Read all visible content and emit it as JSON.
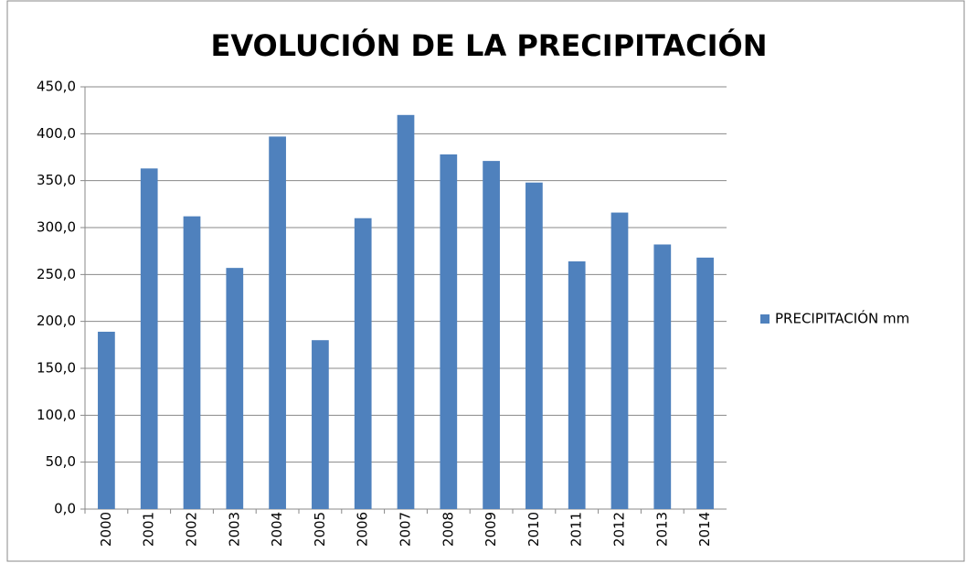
{
  "chart_data": {
    "type": "bar",
    "title": "EVOLUCIÓN DE LA PRECIPITACIÓN",
    "categories": [
      "2000",
      "2001",
      "2002",
      "2003",
      "2004",
      "2005",
      "2006",
      "2007",
      "2008",
      "2009",
      "2010",
      "2011",
      "2012",
      "2013",
      "2014"
    ],
    "series": [
      {
        "name": "PRECIPITACIÓN mm",
        "color": "#4f81bd",
        "values": [
          189,
          363,
          312,
          257,
          397,
          180,
          310,
          420,
          378,
          371,
          348,
          264,
          316,
          282,
          268
        ]
      }
    ],
    "ylim": [
      0,
      450
    ],
    "yticks": [
      {
        "value": 0,
        "label": "0,0"
      },
      {
        "value": 50,
        "label": "50,0"
      },
      {
        "value": 100,
        "label": "100,0"
      },
      {
        "value": 150,
        "label": "150,0"
      },
      {
        "value": 200,
        "label": "200,0"
      },
      {
        "value": 250,
        "label": "250,0"
      },
      {
        "value": 300,
        "label": "300,0"
      },
      {
        "value": 350,
        "label": "350,0"
      },
      {
        "value": 400,
        "label": "400,0"
      },
      {
        "value": 450,
        "label": "450,0"
      }
    ],
    "grid": true,
    "legend": "right"
  }
}
